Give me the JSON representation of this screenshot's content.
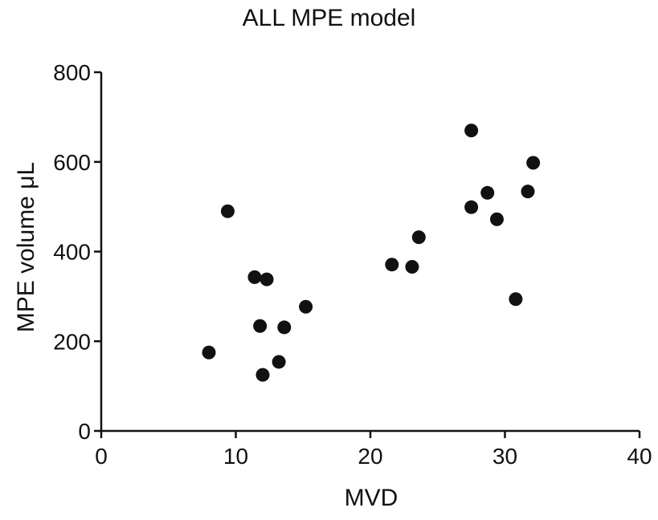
{
  "chart_data": {
    "type": "scatter",
    "title": "ALL MPE model",
    "xlabel": "MVD",
    "ylabel": "MPE volume μL",
    "xlim": [
      0,
      40
    ],
    "ylim": [
      0,
      800
    ],
    "xticks": [
      0,
      10,
      20,
      30,
      40
    ],
    "yticks": [
      0,
      200,
      400,
      600,
      800
    ],
    "grid": false,
    "marker_color": "#111111",
    "points": [
      {
        "x": 8.0,
        "y": 175
      },
      {
        "x": 9.4,
        "y": 490
      },
      {
        "x": 11.4,
        "y": 343
      },
      {
        "x": 12.3,
        "y": 338
      },
      {
        "x": 11.8,
        "y": 234
      },
      {
        "x": 13.6,
        "y": 231
      },
      {
        "x": 15.2,
        "y": 277
      },
      {
        "x": 13.2,
        "y": 154
      },
      {
        "x": 12.0,
        "y": 125
      },
      {
        "x": 21.6,
        "y": 371
      },
      {
        "x": 23.1,
        "y": 366
      },
      {
        "x": 23.6,
        "y": 432
      },
      {
        "x": 27.5,
        "y": 670
      },
      {
        "x": 27.5,
        "y": 499
      },
      {
        "x": 28.7,
        "y": 531
      },
      {
        "x": 29.4,
        "y": 472
      },
      {
        "x": 31.7,
        "y": 534
      },
      {
        "x": 32.1,
        "y": 598
      },
      {
        "x": 30.8,
        "y": 294
      }
    ]
  }
}
